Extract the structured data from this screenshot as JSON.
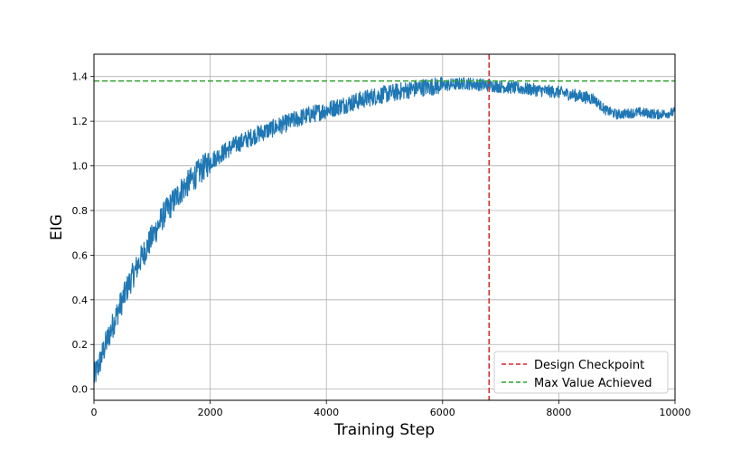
{
  "chart_data": {
    "type": "line",
    "title": "",
    "xlabel": "Training Step",
    "ylabel": "EIG",
    "xlim": [
      0,
      10000
    ],
    "ylim": [
      -0.05,
      1.5
    ],
    "xticks": [
      0,
      2000,
      4000,
      6000,
      8000,
      10000
    ],
    "xtick_labels": [
      "0",
      "2000",
      "4000",
      "6000",
      "8000",
      "10000"
    ],
    "yticks": [
      0.0,
      0.2,
      0.4,
      0.6,
      0.8,
      1.0,
      1.2,
      1.4
    ],
    "ytick_labels": [
      "0.0",
      "0.2",
      "0.4",
      "0.6",
      "0.8",
      "1.0",
      "1.2",
      "1.4"
    ],
    "grid": true,
    "legend_position": "bottom-right",
    "series": [
      {
        "name": "EIG",
        "color": "#1f77b4",
        "noisy": true,
        "x": [
          0,
          100,
          200,
          400,
          600,
          800,
          1000,
          1200,
          1500,
          1800,
          2000,
          2400,
          2800,
          3200,
          3600,
          4000,
          4400,
          4800,
          5200,
          5600,
          6000,
          6400,
          6800,
          7200,
          7600,
          8000,
          8400,
          8600,
          8800,
          9000,
          9400,
          9700,
          10000
        ],
        "values": [
          0.05,
          0.12,
          0.2,
          0.34,
          0.47,
          0.58,
          0.68,
          0.78,
          0.89,
          0.97,
          1.02,
          1.09,
          1.14,
          1.18,
          1.22,
          1.25,
          1.28,
          1.31,
          1.33,
          1.35,
          1.36,
          1.37,
          1.36,
          1.35,
          1.34,
          1.33,
          1.31,
          1.3,
          1.25,
          1.23,
          1.24,
          1.23,
          1.24
        ]
      }
    ],
    "reference_lines": [
      {
        "orientation": "vertical",
        "value": 6800,
        "label": "Design Checkpoint",
        "color": "#d62728",
        "style": "dashed"
      },
      {
        "orientation": "horizontal",
        "value": 1.38,
        "label": "Max Value Achieved",
        "color": "#2ca02c",
        "style": "dashed"
      }
    ]
  }
}
